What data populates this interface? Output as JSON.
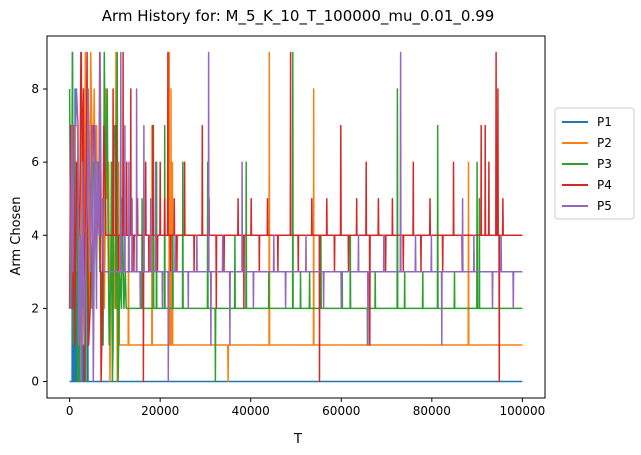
{
  "chart_data": {
    "type": "line",
    "title": "Arm History for: M_5_K_10_T_100000_mu_0.01_0.99",
    "xlabel": "T",
    "ylabel": "Arm Chosen",
    "xlim": [
      -5000,
      105000
    ],
    "ylim": [
      -0.45,
      9.45
    ],
    "xticks": [
      0,
      20000,
      40000,
      60000,
      80000,
      100000
    ],
    "xtick_labels": [
      "0",
      "20000",
      "40000",
      "60000",
      "80000",
      "100000"
    ],
    "yticks": [
      0,
      2,
      4,
      6,
      8
    ],
    "ytick_labels": [
      "0",
      "2",
      "4",
      "6",
      "8"
    ],
    "legend_position": "right-outside",
    "grid": false,
    "series": [
      {
        "name": "P1",
        "color": "#1f77b4",
        "baseline": 0,
        "spikes": [
          [
            600,
            9
          ],
          [
            900,
            5
          ],
          [
            1200,
            8
          ],
          [
            1500,
            3
          ],
          [
            1800,
            7
          ],
          [
            2100,
            2
          ],
          [
            2600,
            9
          ],
          [
            3000,
            1
          ],
          [
            3400,
            6
          ],
          [
            4000,
            4
          ]
        ]
      },
      {
        "name": "P2",
        "color": "#ff7f0e",
        "baseline": 1,
        "early_until": 11000,
        "spikes": [
          [
            9000,
            8
          ],
          [
            10200,
            5
          ],
          [
            13000,
            4
          ],
          [
            18200,
            7
          ],
          [
            22000,
            9
          ],
          [
            22400,
            8
          ],
          [
            22700,
            6
          ],
          [
            35000,
            0
          ],
          [
            44100,
            9
          ],
          [
            53900,
            8
          ],
          [
            88100,
            6
          ]
        ]
      },
      {
        "name": "P3",
        "color": "#2ca02c",
        "baseline": 2,
        "early_until": 12500,
        "spikes": [
          [
            9800,
            7
          ],
          [
            11000,
            9
          ],
          [
            16000,
            5
          ],
          [
            18500,
            7
          ],
          [
            19200,
            6
          ],
          [
            21000,
            7
          ],
          [
            22800,
            4
          ],
          [
            25000,
            6
          ],
          [
            30500,
            6
          ],
          [
            32200,
            0
          ],
          [
            36500,
            4
          ],
          [
            39000,
            6
          ],
          [
            44000,
            3
          ],
          [
            49300,
            9
          ],
          [
            51000,
            3
          ],
          [
            53000,
            3
          ],
          [
            55500,
            4
          ],
          [
            60200,
            3
          ],
          [
            62000,
            4
          ],
          [
            65800,
            1
          ],
          [
            67500,
            3
          ],
          [
            72400,
            8
          ],
          [
            74000,
            3
          ],
          [
            78000,
            3
          ],
          [
            81300,
            7
          ],
          [
            85000,
            3
          ],
          [
            90000,
            6
          ],
          [
            90500,
            5
          ]
        ]
      },
      {
        "name": "P4",
        "color": "#d62728",
        "baseline": 4,
        "early_until": 8000,
        "spikes": [
          [
            9600,
            8
          ],
          [
            10300,
            7
          ],
          [
            10800,
            3
          ],
          [
            11800,
            9
          ],
          [
            12600,
            6
          ],
          [
            13500,
            8
          ],
          [
            14200,
            3
          ],
          [
            15000,
            5
          ],
          [
            16300,
            0
          ],
          [
            16800,
            6
          ],
          [
            17500,
            3
          ],
          [
            18400,
            7
          ],
          [
            19400,
            3
          ],
          [
            20000,
            6
          ],
          [
            21000,
            5
          ],
          [
            21700,
            9
          ],
          [
            22300,
            3
          ],
          [
            23100,
            5
          ],
          [
            23700,
            3
          ],
          [
            25400,
            6
          ],
          [
            27500,
            3
          ],
          [
            29300,
            7
          ],
          [
            30800,
            5
          ],
          [
            32400,
            2
          ],
          [
            34100,
            3
          ],
          [
            37200,
            5
          ],
          [
            38500,
            2
          ],
          [
            40100,
            5
          ],
          [
            41900,
            3
          ],
          [
            43700,
            5
          ],
          [
            46000,
            3
          ],
          [
            48800,
            9
          ],
          [
            50500,
            3
          ],
          [
            53500,
            5
          ],
          [
            55200,
            0
          ],
          [
            56800,
            5
          ],
          [
            58500,
            3
          ],
          [
            59900,
            7
          ],
          [
            61600,
            3
          ],
          [
            63400,
            5
          ],
          [
            65500,
            6
          ],
          [
            66300,
            1
          ],
          [
            68200,
            5
          ],
          [
            69800,
            3
          ],
          [
            71300,
            5
          ],
          [
            73700,
            3
          ],
          [
            75900,
            6
          ],
          [
            77600,
            3
          ],
          [
            79600,
            5
          ],
          [
            82400,
            3
          ],
          [
            84800,
            6
          ],
          [
            86700,
            3
          ],
          [
            89600,
            4
          ],
          [
            90900,
            7
          ],
          [
            91800,
            7
          ],
          [
            92600,
            6
          ],
          [
            94200,
            9
          ],
          [
            94600,
            8
          ],
          [
            94900,
            0
          ],
          [
            95700,
            5
          ],
          [
            97200,
            4
          ]
        ]
      },
      {
        "name": "P5",
        "color": "#9467bd",
        "baseline": 3,
        "early_until": 7500,
        "spikes": [
          [
            11300,
            9
          ],
          [
            12200,
            7
          ],
          [
            13100,
            6
          ],
          [
            13800,
            5
          ],
          [
            14800,
            8
          ],
          [
            15600,
            2
          ],
          [
            16400,
            7
          ],
          [
            17100,
            3
          ],
          [
            17900,
            5
          ],
          [
            19000,
            6
          ],
          [
            20500,
            2
          ],
          [
            21800,
            0
          ],
          [
            23300,
            4
          ],
          [
            26200,
            2
          ],
          [
            28100,
            4
          ],
          [
            30700,
            9
          ],
          [
            31200,
            1
          ],
          [
            33800,
            4
          ],
          [
            35400,
            1
          ],
          [
            38100,
            6
          ],
          [
            40600,
            2
          ],
          [
            45100,
            4
          ],
          [
            47700,
            2
          ],
          [
            52200,
            4
          ],
          [
            56100,
            2
          ],
          [
            60000,
            2
          ],
          [
            63800,
            4
          ],
          [
            65900,
            1
          ],
          [
            69400,
            4
          ],
          [
            73100,
            9
          ],
          [
            76400,
            4
          ],
          [
            79900,
            4
          ],
          [
            82200,
            1
          ],
          [
            86800,
            5
          ],
          [
            89300,
            4
          ],
          [
            93400,
            2
          ],
          [
            95300,
            4
          ],
          [
            98000,
            2
          ]
        ]
      }
    ]
  }
}
